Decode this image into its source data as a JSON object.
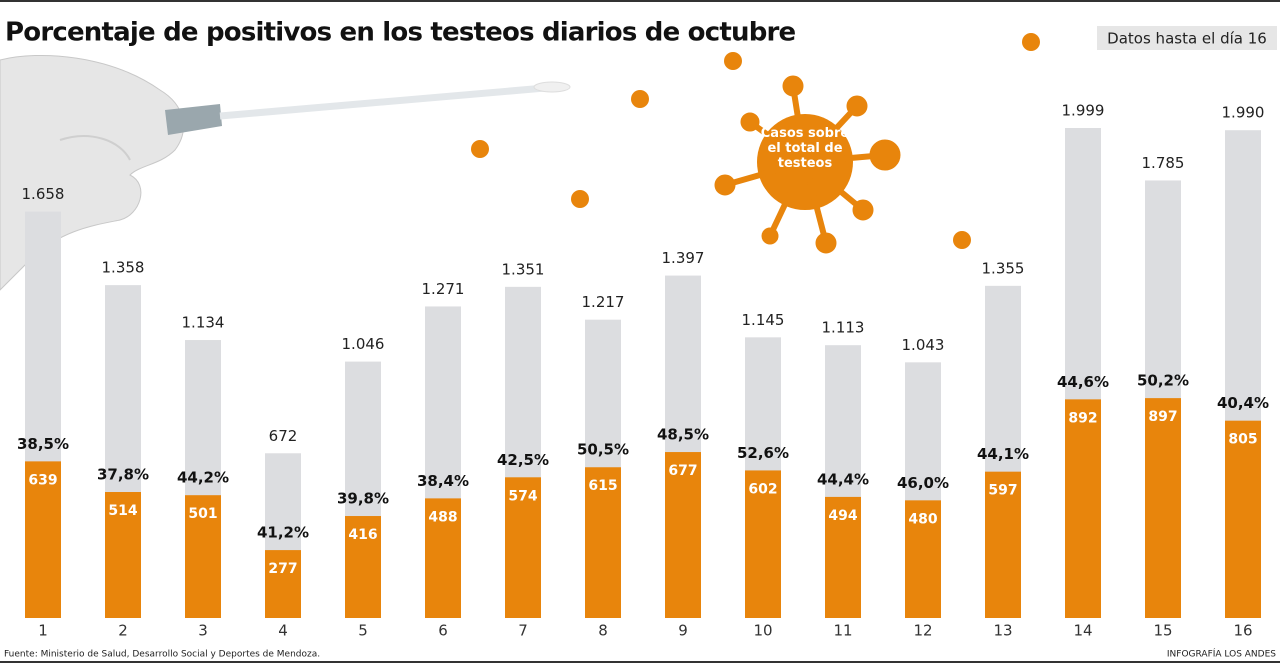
{
  "chart_data": {
    "type": "bar",
    "title": "Porcentaje de positivos en los testeos diarios de octubre",
    "subtitle": "Datos hasta el día 16",
    "annotation": "Casos sobre el total de testeos",
    "source": "Fuente: Ministerio de Salud, Desarrollo Social y Deportes de Mendoza.",
    "credit": "INFOGRAFÍA LOS ANDES",
    "categories": [
      "1",
      "2",
      "3",
      "4",
      "5",
      "6",
      "7",
      "8",
      "9",
      "10",
      "11",
      "12",
      "13",
      "14",
      "15",
      "16"
    ],
    "series": [
      {
        "color": "#dcdde0",
        "values": [
          1658,
          1358,
          1134,
          672,
          1046,
          1271,
          1351,
          1217,
          1397,
          1145,
          1113,
          1043,
          1355,
          1999,
          1785,
          1990
        ],
        "value_labels": [
          "1.658",
          "1.358",
          "1.134",
          "672",
          "1.046",
          "1.271",
          "1.351",
          "1.217",
          "1.397",
          "1.145",
          "1.113",
          "1.043",
          "1.355",
          "1.999",
          "1.785",
          "1.990"
        ]
      },
      {
        "color": "#e8850c",
        "values": [
          639,
          514,
          501,
          277,
          416,
          488,
          574,
          615,
          677,
          602,
          494,
          480,
          597,
          892,
          897,
          805
        ]
      }
    ],
    "percentages": {
      "values": [
        38.5,
        37.8,
        44.2,
        41.2,
        39.8,
        38.4,
        42.5,
        50.5,
        48.5,
        52.6,
        44.4,
        46.0,
        44.1,
        44.6,
        50.2,
        40.4
      ],
      "value_labels": [
        "38,5%",
        "37,8%",
        "44,2%",
        "41,2%",
        "39,8%",
        "38,4%",
        "42,5%",
        "50,5%",
        "48,5%",
        "52,6%",
        "44,4%",
        "46,0%",
        "44,1%",
        "44,6%",
        "50,2%",
        "40,4%"
      ]
    }
  }
}
